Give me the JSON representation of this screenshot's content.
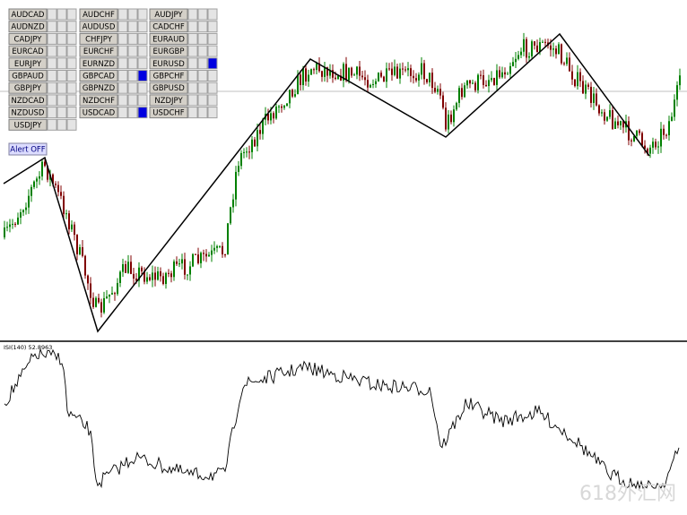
{
  "buttons": {
    "columns": [
      [
        {
          "label": "AUDCAD",
          "signal": false
        },
        {
          "label": "AUDNZD",
          "signal": false
        },
        {
          "label": "CADJPY",
          "signal": false
        },
        {
          "label": "EURCAD",
          "signal": false
        },
        {
          "label": "EURJPY",
          "signal": false
        },
        {
          "label": "GBPAUD",
          "signal": false
        },
        {
          "label": "GBPJPY",
          "signal": false
        },
        {
          "label": "NZDCAD",
          "signal": false
        },
        {
          "label": "NZDUSD",
          "signal": false
        },
        {
          "label": "USDJPY",
          "signal": false
        }
      ],
      [
        {
          "label": "AUDCHF",
          "signal": false
        },
        {
          "label": "AUDUSD",
          "signal": false
        },
        {
          "label": "CHFJPY",
          "signal": false
        },
        {
          "label": "EURCHF",
          "signal": false
        },
        {
          "label": "EURNZD",
          "signal": false
        },
        {
          "label": "GBPCAD",
          "signal": true
        },
        {
          "label": "GBPNZD",
          "signal": false
        },
        {
          "label": "NZDCHF",
          "signal": false
        },
        {
          "label": "USDCAD",
          "signal": true
        }
      ],
      [
        {
          "label": "AUDJPY",
          "signal": false
        },
        {
          "label": "CADCHF",
          "signal": false
        },
        {
          "label": "EURAUD",
          "signal": false
        },
        {
          "label": "EURGBP",
          "signal": false
        },
        {
          "label": "EURUSD",
          "signal": true
        },
        {
          "label": "GBPCHF",
          "signal": false
        },
        {
          "label": "GBPUSD",
          "signal": false
        },
        {
          "label": "NZDJPY",
          "signal": false
        },
        {
          "label": "USDCHF",
          "signal": false
        }
      ]
    ]
  },
  "alert_button": "Alert OFF",
  "indicator_label": "ISI(140) 52.8963",
  "watermark": "618外汇网"
}
